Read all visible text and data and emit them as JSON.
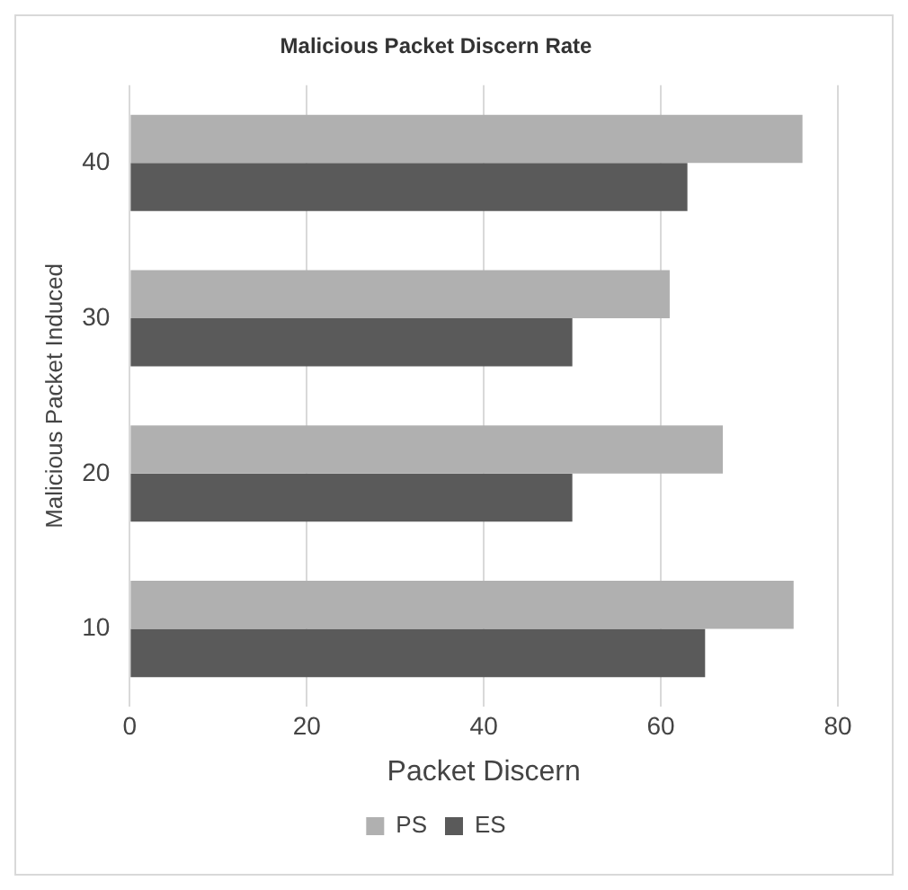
{
  "chart_data": {
    "type": "bar",
    "orientation": "horizontal",
    "title": "Malicious Packet Discern Rate",
    "xlabel": "Packet Discern",
    "ylabel": "Malicious Packet Induced",
    "categories": [
      "40",
      "30",
      "20",
      "10"
    ],
    "series": [
      {
        "name": "PS",
        "color": "#b0b0b0",
        "values": [
          76,
          61,
          67,
          75
        ]
      },
      {
        "name": "ES",
        "color": "#5a5a5a",
        "values": [
          63,
          50,
          50,
          65
        ]
      }
    ],
    "xlim": [
      0,
      80
    ],
    "xticks": [
      0,
      20,
      40,
      60,
      80
    ],
    "grid": "x",
    "legend": "bottom"
  }
}
